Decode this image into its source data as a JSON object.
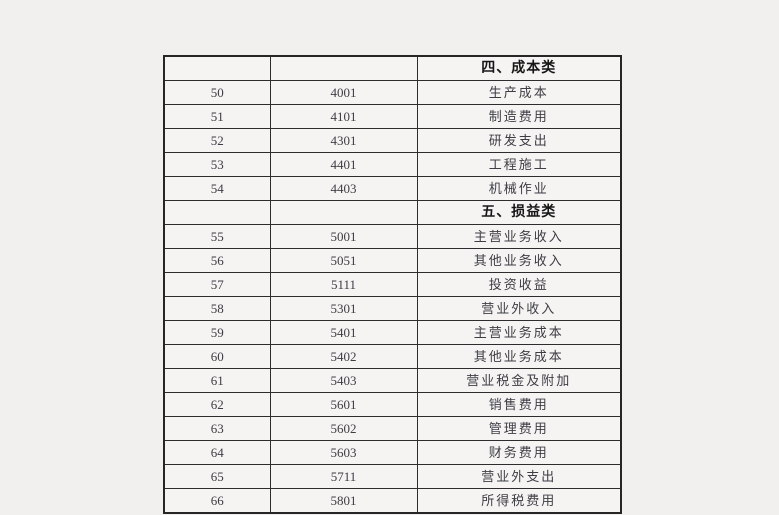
{
  "page": {
    "background_color": "#f1f0ee"
  },
  "table": {
    "border_color": "#2d2d2d",
    "outer_border_color": "#262626",
    "cell_background": "#f5f4f2",
    "text_color": "#3d3d45",
    "section_text_color": "#161616",
    "rows": [
      {
        "kind": "section",
        "serial": "",
        "code": "",
        "name": "四、成本类"
      },
      {
        "kind": "entry",
        "serial": "50",
        "code": "4001",
        "name": "生产成本"
      },
      {
        "kind": "entry",
        "serial": "51",
        "code": "4101",
        "name": "制造费用"
      },
      {
        "kind": "entry",
        "serial": "52",
        "code": "4301",
        "name": "研发支出"
      },
      {
        "kind": "entry",
        "serial": "53",
        "code": "4401",
        "name": "工程施工"
      },
      {
        "kind": "entry",
        "serial": "54",
        "code": "4403",
        "name": "机械作业"
      },
      {
        "kind": "section",
        "serial": "",
        "code": "",
        "name": "五、损益类"
      },
      {
        "kind": "entry",
        "serial": "55",
        "code": "5001",
        "name": "主营业务收入"
      },
      {
        "kind": "entry",
        "serial": "56",
        "code": "5051",
        "name": "其他业务收入"
      },
      {
        "kind": "entry",
        "serial": "57",
        "code": "5111",
        "name": "投资收益"
      },
      {
        "kind": "entry",
        "serial": "58",
        "code": "5301",
        "name": "营业外收入"
      },
      {
        "kind": "entry",
        "serial": "59",
        "code": "5401",
        "name": "主营业务成本"
      },
      {
        "kind": "entry",
        "serial": "60",
        "code": "5402",
        "name": "其他业务成本"
      },
      {
        "kind": "entry",
        "serial": "61",
        "code": "5403",
        "name": "营业税金及附加"
      },
      {
        "kind": "entry",
        "serial": "62",
        "code": "5601",
        "name": "销售费用"
      },
      {
        "kind": "entry",
        "serial": "63",
        "code": "5602",
        "name": "管理费用"
      },
      {
        "kind": "entry",
        "serial": "64",
        "code": "5603",
        "name": "财务费用"
      },
      {
        "kind": "entry",
        "serial": "65",
        "code": "5711",
        "name": "营业外支出"
      },
      {
        "kind": "entry",
        "serial": "66",
        "code": "5801",
        "name": "所得税费用"
      }
    ]
  }
}
